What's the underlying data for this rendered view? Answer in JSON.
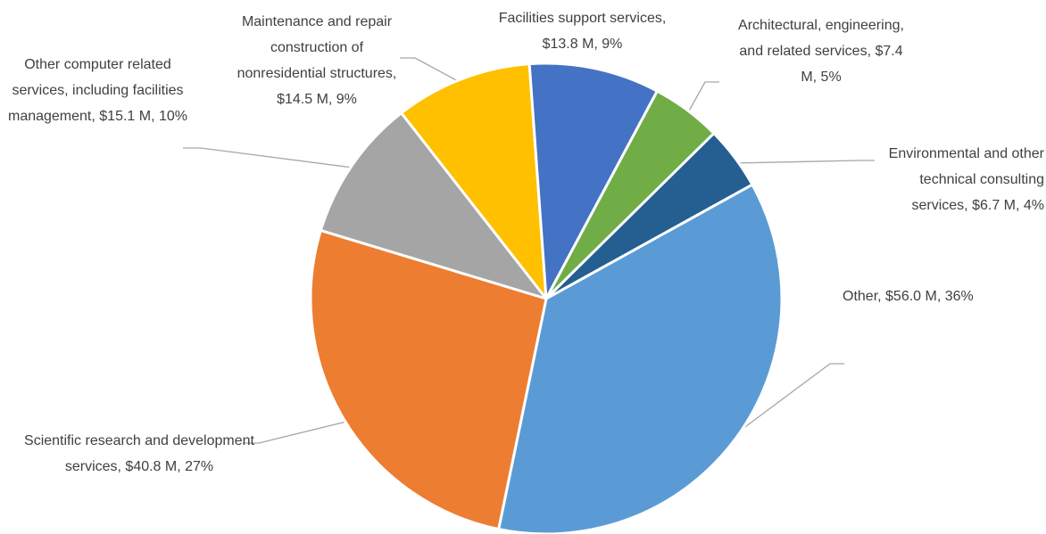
{
  "chart_data": {
    "type": "pie",
    "values": [
      56.0,
      40.8,
      15.1,
      14.5,
      13.8,
      7.4,
      6.7
    ],
    "value_labels": [
      "Other,  $56.0 M, 36%",
      "Scientific research and development services, $40.8 M, 27%",
      "Other computer related services, including facilities management, $15.1 M, 10%",
      "Maintenance and repair construction of nonresidential structures, $14.5 M, 9%",
      "Facilities support services, $13.8 M, 9%",
      "Architectural, engineering, and related services, $7.4 M, 5%",
      "Environmental and other technical consulting services, $6.7 M, 4%"
    ],
    "colors": [
      "#5b9bd5",
      "#ed7d31",
      "#a5a5a5",
      "#ffc000",
      "#4472c4",
      "#70ad47",
      "#255e91"
    ]
  }
}
